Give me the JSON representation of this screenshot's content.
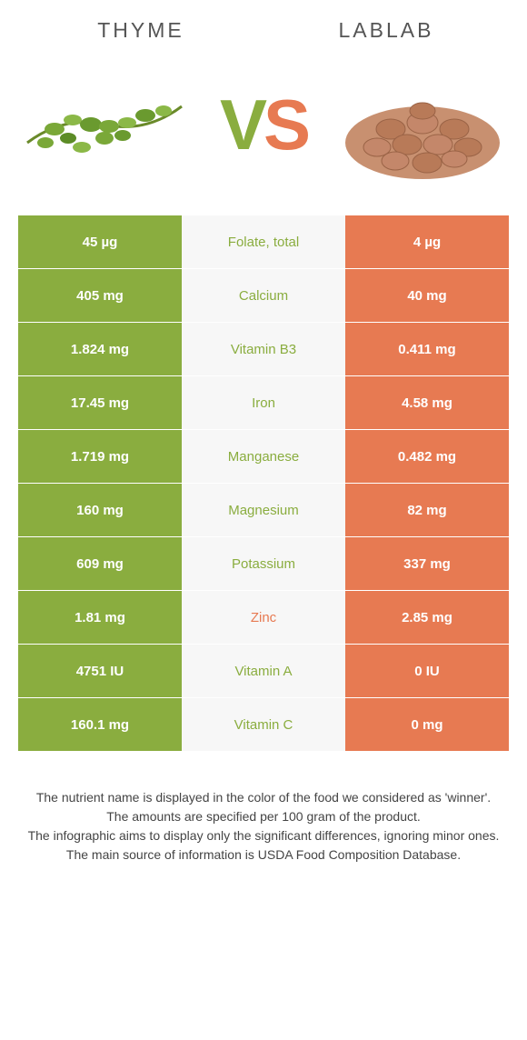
{
  "colors": {
    "left_bg": "#8aad3f",
    "right_bg": "#e77a52",
    "mid_bg": "#f7f7f7",
    "left_text": "#ffffff",
    "right_text": "#ffffff",
    "winner_left": "#8aad3f",
    "winner_right": "#e77a52",
    "title_color": "#555555",
    "footer_color": "#444444"
  },
  "header": {
    "left_title": "THYME",
    "right_title": "LABLAB",
    "vs_v": "V",
    "vs_s": "S"
  },
  "rows": [
    {
      "left": "45 µg",
      "label": "Folate, total",
      "right": "4 µg",
      "winner": "left"
    },
    {
      "left": "405 mg",
      "label": "Calcium",
      "right": "40 mg",
      "winner": "left"
    },
    {
      "left": "1.824 mg",
      "label": "Vitamin B3",
      "right": "0.411 mg",
      "winner": "left"
    },
    {
      "left": "17.45 mg",
      "label": "Iron",
      "right": "4.58 mg",
      "winner": "left"
    },
    {
      "left": "1.719 mg",
      "label": "Manganese",
      "right": "0.482 mg",
      "winner": "left"
    },
    {
      "left": "160 mg",
      "label": "Magnesium",
      "right": "82 mg",
      "winner": "left"
    },
    {
      "left": "609 mg",
      "label": "Potassium",
      "right": "337 mg",
      "winner": "left"
    },
    {
      "left": "1.81 mg",
      "label": "Zinc",
      "right": "2.85 mg",
      "winner": "right"
    },
    {
      "left": "4751 IU",
      "label": "Vitamin A",
      "right": "0 IU",
      "winner": "left"
    },
    {
      "left": "160.1 mg",
      "label": "Vitamin C",
      "right": "0 mg",
      "winner": "left"
    }
  ],
  "footer": {
    "line1": "The nutrient name is displayed in the color of the food we considered as 'winner'.",
    "line2": "The amounts are specified per 100 gram of the product.",
    "line3": "The infographic aims to display only the significant differences, ignoring minor ones.",
    "line4": "The main source of information is USDA Food Composition Database."
  }
}
